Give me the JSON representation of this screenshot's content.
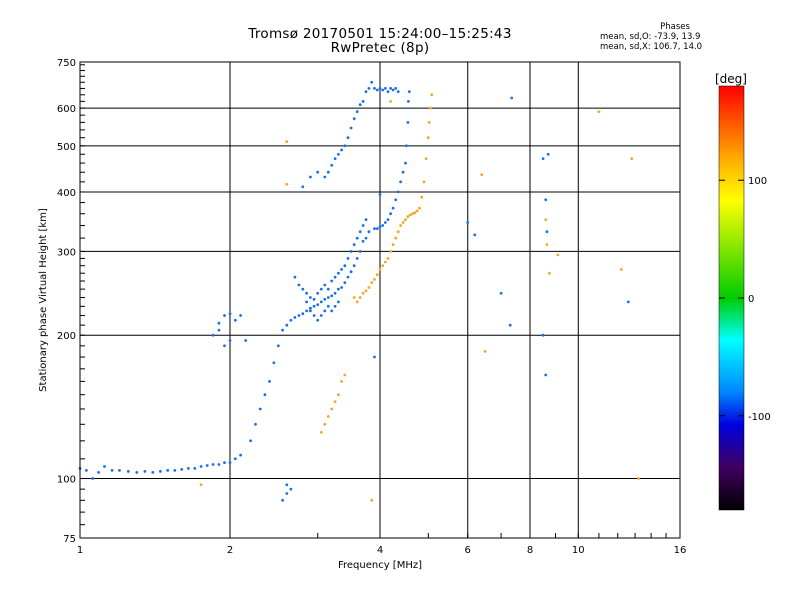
{
  "header": {
    "title": "Tromsø 20170501 15:24:00–15:25:43",
    "subtitle": "RwPretec (8p)",
    "stats_title": "Phases",
    "stats_o": "mean, sd,O: -73.9, 13.9",
    "stats_x": "mean, sd,X: 106.7, 14.0"
  },
  "chart_data": {
    "type": "scatter",
    "title": "Tromsø 20170501 15:24:00–15:25:43",
    "subtitle": "RwPretec (8p)",
    "xlabel": "Frequency [MHz]",
    "ylabel": "Stationary phase Virtual Height [km]",
    "xscale": "log",
    "yscale": "log",
    "xlim": [
      1,
      16
    ],
    "ylim": [
      75,
      750
    ],
    "xticks": [
      1,
      2,
      4,
      6,
      8,
      10,
      16
    ],
    "xtick_labels": [
      "1",
      "2",
      "4",
      "6",
      "8",
      "10",
      "16"
    ],
    "yticks": [
      75,
      100,
      200,
      300,
      400,
      500,
      600,
      750
    ],
    "ytick_labels": [
      "75",
      "100",
      "200",
      "300",
      "400",
      "500",
      "600",
      "750"
    ],
    "grid": true,
    "colorbar": {
      "label": "[deg]",
      "range": [
        -180,
        180
      ],
      "ticks": [
        100,
        0,
        -100
      ],
      "tick_labels": [
        "100",
        "0",
        "-100"
      ],
      "colors": [
        "#ff0000",
        "#ffaa00",
        "#ffff00",
        "#00cc00",
        "#00ffff",
        "#0088ff",
        "#0000dd",
        "#400060",
        "#000000"
      ]
    },
    "series": [
      {
        "mode": "O",
        "color": "#1a6ee8",
        "points": [
          [
            1.0,
            105
          ],
          [
            1.03,
            104
          ],
          [
            1.06,
            100
          ],
          [
            1.09,
            103
          ],
          [
            1.12,
            106
          ],
          [
            1.16,
            104
          ],
          [
            1.2,
            104
          ],
          [
            1.25,
            103.5
          ],
          [
            1.3,
            103
          ],
          [
            1.35,
            103.5
          ],
          [
            1.4,
            103
          ],
          [
            1.45,
            103.5
          ],
          [
            1.5,
            104
          ],
          [
            1.55,
            104
          ],
          [
            1.6,
            104.5
          ],
          [
            1.65,
            105
          ],
          [
            1.7,
            105
          ],
          [
            1.75,
            106
          ],
          [
            1.8,
            106.5
          ],
          [
            1.85,
            107
          ],
          [
            1.9,
            107
          ],
          [
            1.95,
            108
          ],
          [
            2.0,
            108
          ],
          [
            2.05,
            110
          ],
          [
            2.1,
            112
          ],
          [
            2.2,
            120
          ],
          [
            2.25,
            130
          ],
          [
            2.3,
            140
          ],
          [
            2.35,
            150
          ],
          [
            2.4,
            160
          ],
          [
            2.45,
            175
          ],
          [
            2.5,
            190
          ],
          [
            2.55,
            205
          ],
          [
            2.6,
            210
          ],
          [
            2.65,
            215
          ],
          [
            2.7,
            218
          ],
          [
            2.75,
            220
          ],
          [
            2.8,
            222
          ],
          [
            2.85,
            225
          ],
          [
            2.9,
            228
          ],
          [
            2.95,
            230
          ],
          [
            3.0,
            232
          ],
          [
            3.05,
            235
          ],
          [
            3.1,
            238
          ],
          [
            3.15,
            240
          ],
          [
            3.2,
            242
          ],
          [
            3.25,
            245
          ],
          [
            3.3,
            250
          ],
          [
            3.35,
            252
          ],
          [
            3.4,
            258
          ],
          [
            3.45,
            265
          ],
          [
            3.5,
            272
          ],
          [
            3.55,
            280
          ],
          [
            3.6,
            290
          ],
          [
            3.65,
            300
          ],
          [
            3.7,
            315
          ],
          [
            3.75,
            320
          ],
          [
            3.8,
            330
          ],
          [
            1.85,
            200
          ],
          [
            1.9,
            212
          ],
          [
            1.95,
            220
          ],
          [
            2.0,
            222
          ],
          [
            2.05,
            215
          ],
          [
            2.1,
            220
          ],
          [
            2.15,
            195
          ],
          [
            2.0,
            195
          ],
          [
            1.95,
            190
          ],
          [
            1.9,
            205
          ],
          [
            2.7,
            265
          ],
          [
            2.75,
            255
          ],
          [
            2.8,
            250
          ],
          [
            2.85,
            245
          ],
          [
            2.9,
            240
          ],
          [
            2.95,
            238
          ],
          [
            3.0,
            245
          ],
          [
            3.05,
            250
          ],
          [
            3.1,
            255
          ],
          [
            3.15,
            250
          ],
          [
            3.2,
            260
          ],
          [
            3.25,
            265
          ],
          [
            3.3,
            270
          ],
          [
            3.35,
            275
          ],
          [
            3.4,
            280
          ],
          [
            3.45,
            290
          ],
          [
            3.5,
            300
          ],
          [
            3.55,
            310
          ],
          [
            3.6,
            320
          ],
          [
            3.65,
            330
          ],
          [
            3.7,
            340
          ],
          [
            3.75,
            350
          ],
          [
            2.85,
            235
          ],
          [
            2.9,
            225
          ],
          [
            2.95,
            220
          ],
          [
            3.0,
            215
          ],
          [
            3.05,
            220
          ],
          [
            3.1,
            225
          ],
          [
            3.15,
            230
          ],
          [
            3.2,
            225
          ],
          [
            3.25,
            230
          ],
          [
            3.3,
            235
          ],
          [
            3.1,
            430
          ],
          [
            3.15,
            440
          ],
          [
            3.2,
            455
          ],
          [
            3.25,
            470
          ],
          [
            3.3,
            480
          ],
          [
            3.35,
            490
          ],
          [
            3.4,
            500
          ],
          [
            3.45,
            520
          ],
          [
            3.5,
            545
          ],
          [
            3.55,
            570
          ],
          [
            3.6,
            590
          ],
          [
            3.65,
            610
          ],
          [
            3.7,
            620
          ],
          [
            3.75,
            650
          ],
          [
            3.8,
            660
          ],
          [
            3.85,
            680
          ],
          [
            3.9,
            335
          ],
          [
            3.95,
            335
          ],
          [
            4.0,
            338
          ],
          [
            4.05,
            340
          ],
          [
            4.1,
            345
          ],
          [
            4.15,
            350
          ],
          [
            4.2,
            360
          ],
          [
            4.25,
            370
          ],
          [
            4.3,
            385
          ],
          [
            4.35,
            400
          ],
          [
            4.4,
            420
          ],
          [
            4.45,
            440
          ],
          [
            4.5,
            460
          ],
          [
            4.52,
            500
          ],
          [
            4.55,
            560
          ],
          [
            4.56,
            620
          ],
          [
            4.58,
            650
          ],
          [
            3.9,
            660
          ],
          [
            3.95,
            655
          ],
          [
            4.0,
            660
          ],
          [
            4.05,
            655
          ],
          [
            4.1,
            660
          ],
          [
            4.15,
            650
          ],
          [
            4.2,
            660
          ],
          [
            4.25,
            655
          ],
          [
            4.3,
            660
          ],
          [
            4.35,
            650
          ],
          [
            2.8,
            410
          ],
          [
            2.9,
            430
          ],
          [
            3.0,
            440
          ],
          [
            2.6,
            97
          ],
          [
            2.65,
            95
          ],
          [
            2.6,
            93
          ],
          [
            2.55,
            90
          ],
          [
            3.9,
            180
          ],
          [
            4.0,
            395
          ],
          [
            6.0,
            345
          ],
          [
            6.2,
            325
          ],
          [
            7.0,
            245
          ],
          [
            7.3,
            210
          ],
          [
            7.35,
            630
          ],
          [
            8.5,
            470
          ],
          [
            8.6,
            385
          ],
          [
            8.5,
            200
          ],
          [
            8.6,
            165
          ],
          [
            8.65,
            330
          ],
          [
            12.6,
            235
          ],
          [
            8.7,
            480
          ]
        ]
      },
      {
        "mode": "X",
        "color": "#f5a623",
        "points": [
          [
            3.05,
            125
          ],
          [
            3.1,
            130
          ],
          [
            3.15,
            135
          ],
          [
            3.2,
            140
          ],
          [
            3.25,
            145
          ],
          [
            3.3,
            150
          ],
          [
            3.35,
            160
          ],
          [
            3.4,
            165
          ],
          [
            3.55,
            240
          ],
          [
            3.6,
            235
          ],
          [
            3.65,
            240
          ],
          [
            3.7,
            245
          ],
          [
            3.75,
            248
          ],
          [
            3.8,
            252
          ],
          [
            3.85,
            258
          ],
          [
            3.9,
            262
          ],
          [
            3.95,
            268
          ],
          [
            4.0,
            275
          ],
          [
            4.05,
            280
          ],
          [
            4.1,
            285
          ],
          [
            4.15,
            290
          ],
          [
            4.2,
            300
          ],
          [
            4.25,
            310
          ],
          [
            4.3,
            320
          ],
          [
            4.35,
            330
          ],
          [
            4.4,
            340
          ],
          [
            4.45,
            345
          ],
          [
            4.5,
            350
          ],
          [
            4.55,
            355
          ],
          [
            4.6,
            358
          ],
          [
            4.65,
            360
          ],
          [
            4.7,
            362
          ],
          [
            4.75,
            365
          ],
          [
            4.8,
            370
          ],
          [
            4.85,
            390
          ],
          [
            4.9,
            420
          ],
          [
            4.95,
            470
          ],
          [
            5.0,
            520
          ],
          [
            5.02,
            560
          ],
          [
            5.05,
            600
          ],
          [
            5.08,
            640
          ],
          [
            2.6,
            415
          ],
          [
            2.6,
            510
          ],
          [
            1.75,
            97
          ],
          [
            3.85,
            90
          ],
          [
            6.4,
            435
          ],
          [
            6.5,
            185
          ],
          [
            8.6,
            350
          ],
          [
            8.65,
            310
          ],
          [
            8.75,
            270
          ],
          [
            9.1,
            295
          ],
          [
            11.0,
            590
          ],
          [
            12.2,
            275
          ],
          [
            12.8,
            470
          ],
          [
            13.2,
            100
          ],
          [
            4.2,
            620
          ]
        ]
      }
    ]
  }
}
